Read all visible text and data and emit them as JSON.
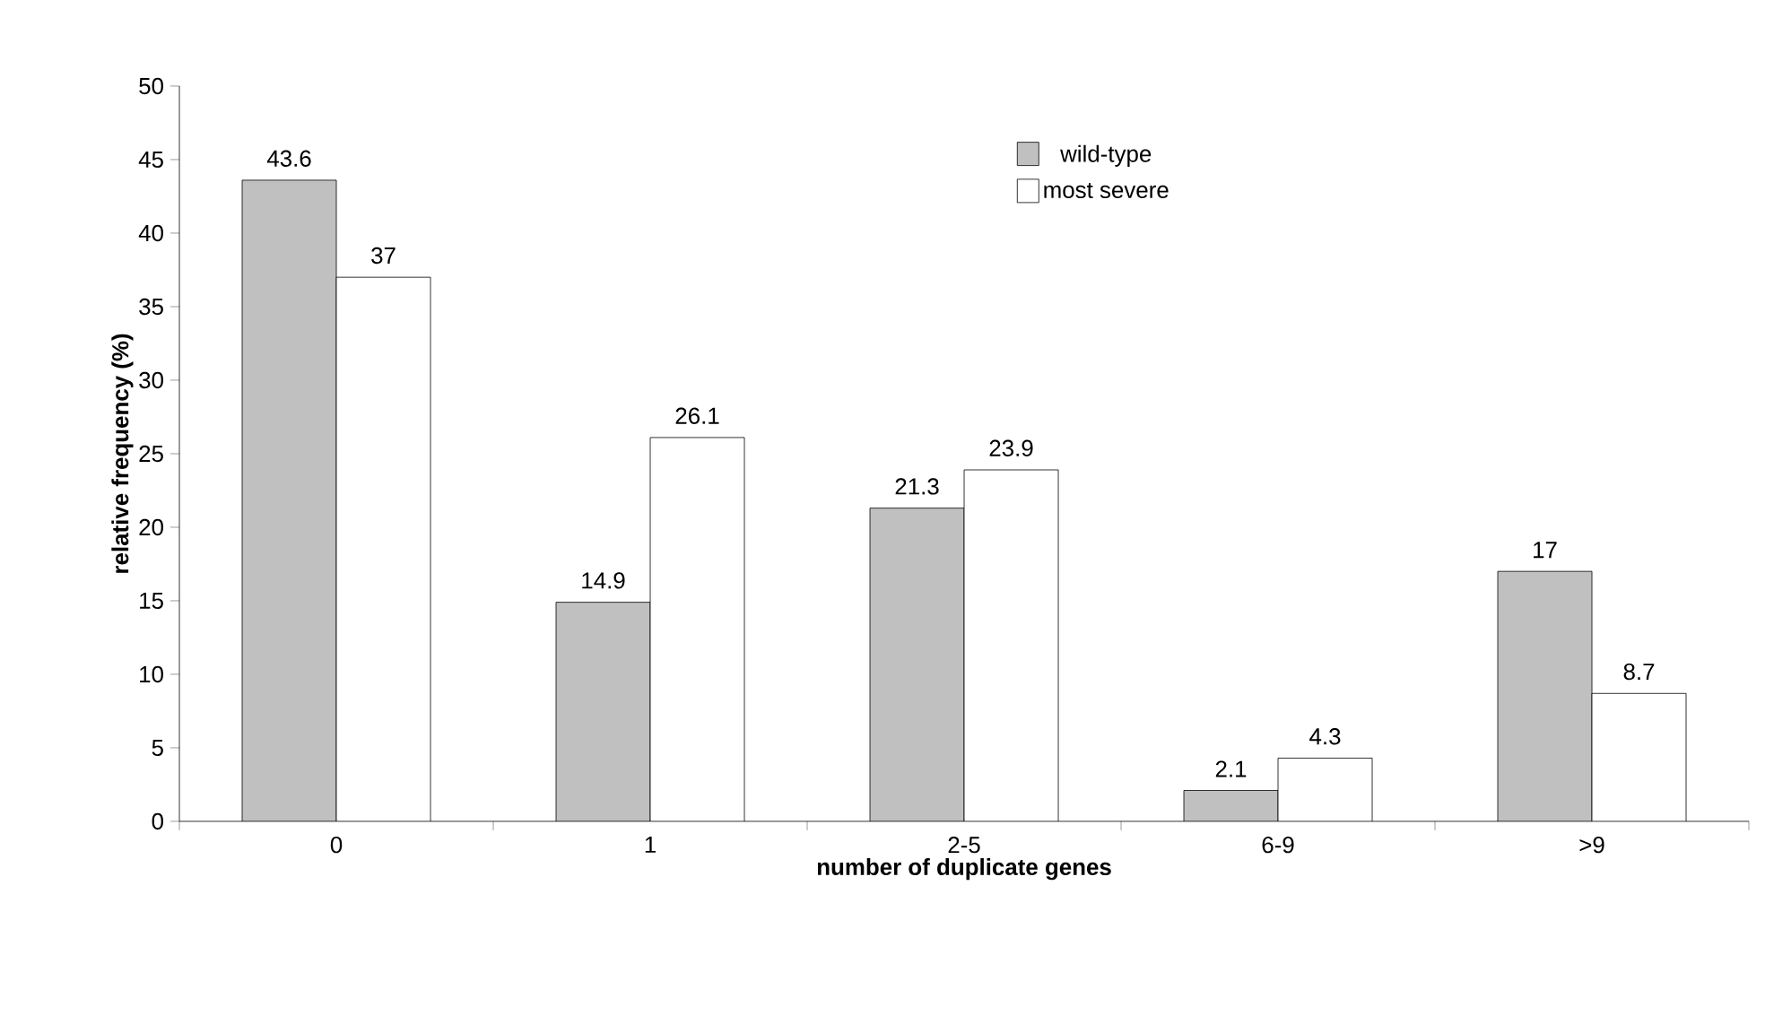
{
  "chart_data": {
    "type": "bar",
    "xlabel": "number of duplicate genes",
    "ylabel": "relative frequency (%)",
    "categories": [
      "0",
      "1",
      "2-5",
      "6-9",
      ">9"
    ],
    "series": [
      {
        "name": "wild-type",
        "color": "#c0c0c0",
        "values": [
          43.6,
          14.9,
          21.3,
          2.1,
          17
        ]
      },
      {
        "name": "most severe",
        "color": "#ffffff",
        "values": [
          37,
          26.1,
          23.9,
          4.3,
          8.7
        ]
      }
    ],
    "ylim": [
      0,
      50
    ],
    "yticks": [
      0,
      5,
      10,
      15,
      20,
      25,
      30,
      35,
      40,
      45,
      50
    ],
    "data_labels": true,
    "legend": "top right",
    "grid": false
  }
}
